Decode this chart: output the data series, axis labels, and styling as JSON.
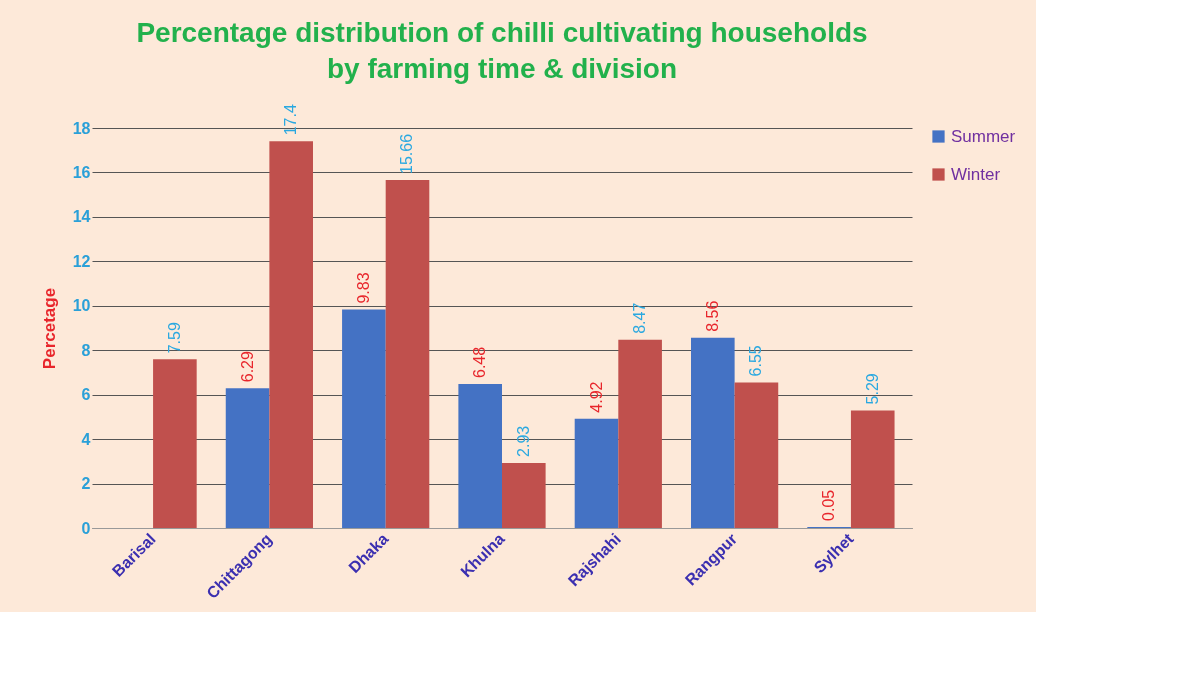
{
  "chart_data": {
    "type": "bar",
    "title": "Percentage distribution of chilli cultivating households by farming time & division",
    "ylabel": "Percetage",
    "categories": [
      "Barisal",
      "Chittagong",
      "Dhaka",
      "Khulna",
      "Rajshahi",
      "Rangpur",
      "Sylhet"
    ],
    "series": [
      {
        "name": "Summer",
        "color": "#4472c4",
        "values": [
          null,
          6.29,
          9.83,
          6.48,
          4.92,
          8.56,
          0.05
        ]
      },
      {
        "name": "Winter",
        "color": "#c0504d",
        "values": [
          7.59,
          17.4,
          15.66,
          2.93,
          8.47,
          6.55,
          5.29
        ]
      }
    ],
    "ylim": [
      0,
      18
    ],
    "yticks": [
      0,
      2,
      4,
      6,
      8,
      10,
      12,
      14,
      16,
      18
    ],
    "grid": "y",
    "legend": "right",
    "data_labels": true
  }
}
